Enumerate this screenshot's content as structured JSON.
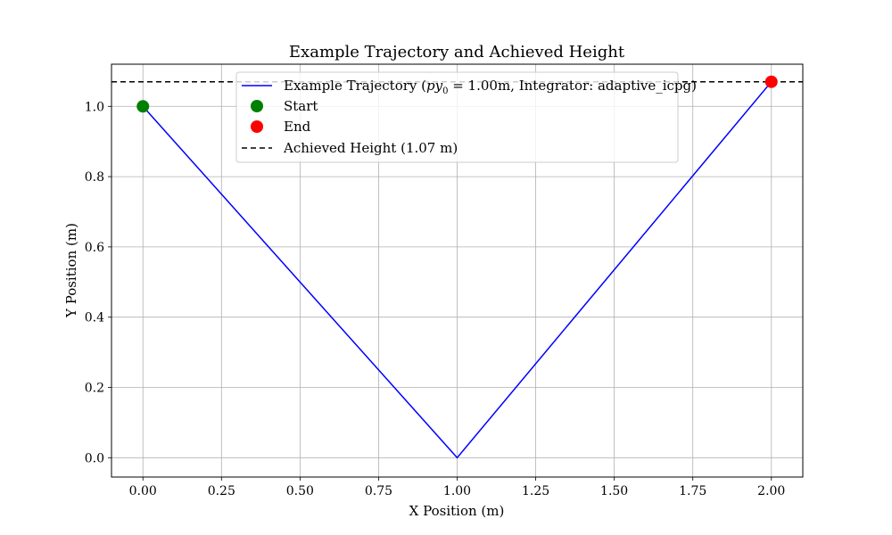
{
  "chart_data": {
    "type": "line",
    "title": "Example Trajectory and Achieved Height",
    "xlabel": "X Position (m)",
    "ylabel": "Y Position (m)",
    "xlim": [
      -0.1,
      2.1
    ],
    "ylim": [
      -0.055,
      1.12
    ],
    "xticks": [
      0.0,
      0.25,
      0.5,
      0.75,
      1.0,
      1.25,
      1.5,
      1.75,
      2.0
    ],
    "xtick_labels": [
      "0.00",
      "0.25",
      "0.50",
      "0.75",
      "1.00",
      "1.25",
      "1.50",
      "1.75",
      "2.00"
    ],
    "yticks": [
      0.0,
      0.2,
      0.4,
      0.6,
      0.8,
      1.0
    ],
    "ytick_labels": [
      "0.0",
      "0.2",
      "0.4",
      "0.6",
      "0.8",
      "1.0"
    ],
    "grid": true,
    "legend_position": "top-center",
    "series": [
      {
        "name": "Example Trajectory (py0 = 1.00m, Integrator: adaptive_icpg)",
        "kind": "line",
        "color": "#0000ff",
        "x": [
          0.0,
          1.0,
          2.0
        ],
        "y": [
          1.0,
          0.0,
          1.07
        ]
      },
      {
        "name": "Start",
        "kind": "point",
        "color": "#008000",
        "x": [
          0.0
        ],
        "y": [
          1.0
        ]
      },
      {
        "name": "End",
        "kind": "point",
        "color": "#ff0000",
        "x": [
          2.0
        ],
        "y": [
          1.07
        ]
      },
      {
        "name": "Achieved Height (1.07 m)",
        "kind": "hline",
        "color": "#000000",
        "style": "dashed",
        "y": 1.07
      }
    ],
    "legend": {
      "entries": [
        {
          "text_parts": [
            "Example Trajectory (",
            "py",
            "0",
            " = 1.00m, Integrator: adaptive_icpg)"
          ],
          "series": 0
        },
        {
          "text": "Start",
          "series": 1
        },
        {
          "text": "End",
          "series": 2
        },
        {
          "text": "Achieved Height (1.07 m)",
          "series": 3
        }
      ]
    }
  }
}
